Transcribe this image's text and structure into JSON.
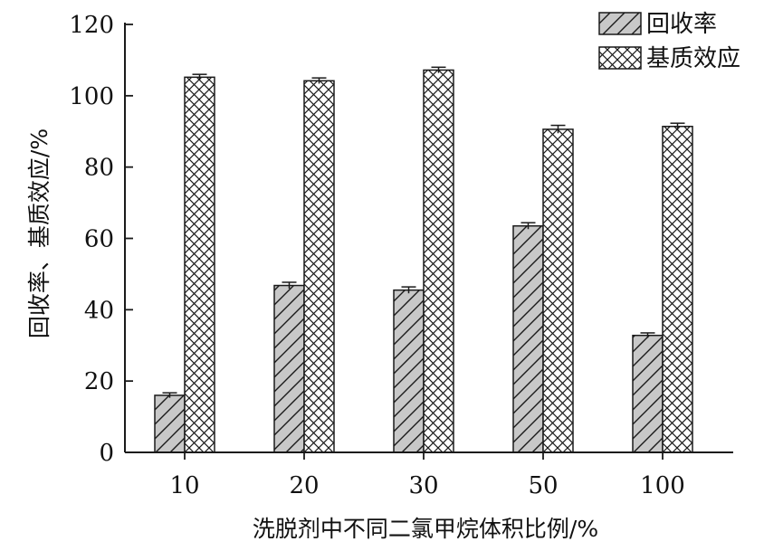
{
  "chart_data": {
    "type": "bar",
    "categories": [
      "10",
      "20",
      "30",
      "50",
      "100"
    ],
    "series": [
      {
        "name": "回收率",
        "values": [
          16,
          46.8,
          45.5,
          63.5,
          32.8
        ],
        "errors": [
          0.7,
          0.9,
          0.9,
          0.9,
          0.7
        ],
        "pattern": "hatch"
      },
      {
        "name": "基质效应",
        "values": [
          105.2,
          104.2,
          107.2,
          90.6,
          91.4
        ],
        "errors": [
          0.8,
          0.8,
          0.8,
          1.1,
          0.9
        ],
        "pattern": "crosshatch"
      }
    ],
    "xlabel": "洗脱剂中不同二氯甲烷体积比例/%",
    "ylabel": "回收率、基质效应/%",
    "ylim": [
      0,
      120
    ],
    "yticks": [
      0,
      20,
      40,
      60,
      80,
      100,
      120
    ],
    "legend_position": "top-right",
    "grid": false,
    "colors": {
      "series1_fill": "#c8c8c8",
      "series2_fill": "#ffffff",
      "stroke": "#1a1a1a"
    }
  }
}
